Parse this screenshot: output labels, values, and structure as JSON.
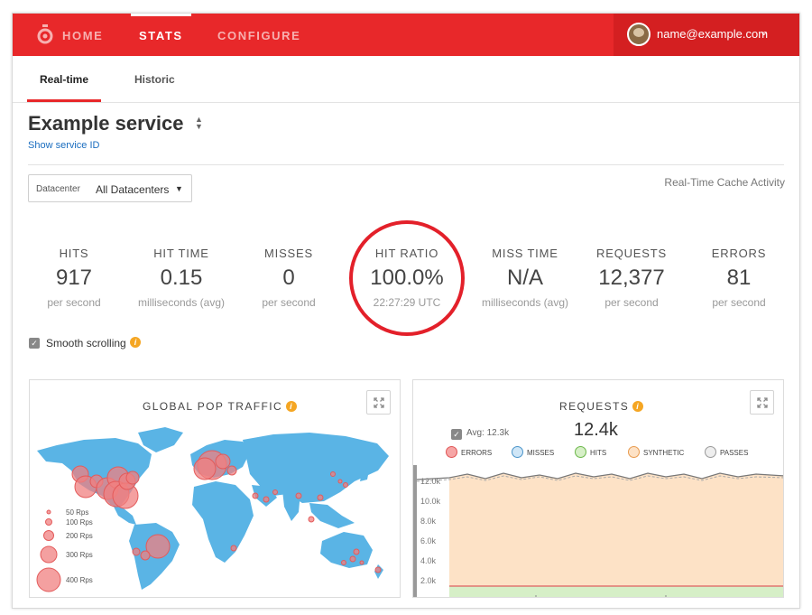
{
  "nav": {
    "items": [
      {
        "label": "HOME"
      },
      {
        "label": "STATS"
      },
      {
        "label": "CONFIGURE"
      }
    ],
    "user": {
      "email": "name@example.com"
    }
  },
  "subtabs": [
    {
      "label": "Real-time"
    },
    {
      "label": "Historic"
    }
  ],
  "service": {
    "title": "Example service",
    "show_id_link": "Show service ID"
  },
  "datacenter": {
    "label": "Datacenter",
    "value": "All Datacenters"
  },
  "realtime_label": "Real-Time Cache Activity",
  "stats": [
    {
      "label": "HITS",
      "value": "917",
      "unit": "per second"
    },
    {
      "label": "HIT TIME",
      "value": "0.15",
      "unit": "milliseconds (avg)"
    },
    {
      "label": "MISSES",
      "value": "0",
      "unit": "per second"
    },
    {
      "label": "HIT RATIO",
      "value": "100.0%",
      "unit": "22:27:29 UTC"
    },
    {
      "label": "MISS TIME",
      "value": "N/A",
      "unit": "milliseconds (avg)"
    },
    {
      "label": "REQUESTS",
      "value": "12,377",
      "unit": "per second"
    },
    {
      "label": "ERRORS",
      "value": "81",
      "unit": "per second"
    }
  ],
  "smooth_scrolling": {
    "label": "Smooth scrolling",
    "checked": true
  },
  "traffic_panel": {
    "title": "GLOBAL POP TRAFFIC",
    "size_legend": [
      "50 Rps",
      "100 Rps",
      "200 Rps",
      "300 Rps",
      "400 Rps"
    ]
  },
  "requests_panel": {
    "title": "REQUESTS",
    "avg_label": "Avg: 12.3k",
    "current": "12.4k",
    "legend": [
      {
        "label": "ERRORS",
        "color": "#f08080"
      },
      {
        "label": "MISSES",
        "color": "#7fb6e0"
      },
      {
        "label": "HITS",
        "color": "#9ad17f"
      },
      {
        "label": "SYNTHETIC",
        "color": "#f5c08a"
      },
      {
        "label": "PASSES",
        "color": "#bbbbbb"
      }
    ],
    "y_ticks": [
      "12.0k",
      "10.0k",
      "8.0k",
      "6.0k",
      "4.0k",
      "2.0k"
    ]
  },
  "colors": {
    "brand_red": "#e8282a",
    "info_orange": "#f5a623",
    "map_blue": "#5ab4e5",
    "pop_circle": "#f08080"
  }
}
